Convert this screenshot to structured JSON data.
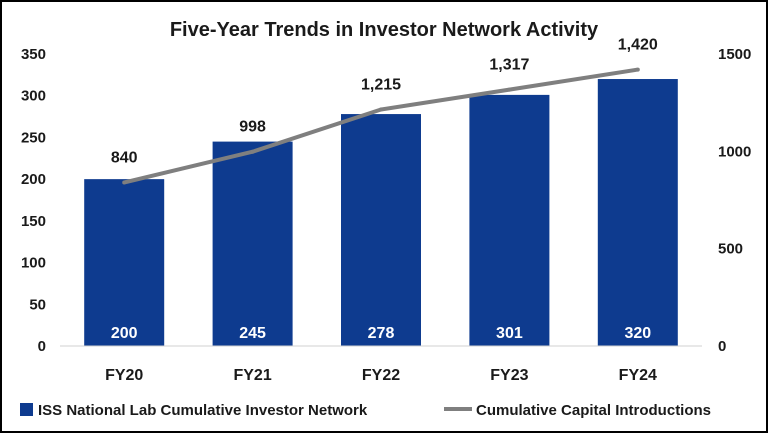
{
  "chart_data": {
    "type": "bar+line",
    "title": "Five-Year Trends in Investor Network Activity",
    "categories": [
      "FY20",
      "FY21",
      "FY22",
      "FY23",
      "FY24"
    ],
    "series": [
      {
        "name": "ISS National Lab Cumulative Investor Network",
        "type": "bar",
        "axis": "left",
        "values": [
          200,
          245,
          278,
          301,
          320
        ],
        "labels": [
          "200",
          "245",
          "278",
          "301",
          "320"
        ],
        "color": "#0E3B8F"
      },
      {
        "name": "Cumulative Capital Introductions",
        "type": "line",
        "axis": "right",
        "values": [
          840,
          998,
          1215,
          1317,
          1420
        ],
        "labels": [
          "840",
          "998",
          "1,215",
          "1,317",
          "1,420"
        ],
        "color": "#7F7F7F"
      }
    ],
    "y_left": {
      "min": 0,
      "max": 350,
      "ticks": [
        0,
        50,
        100,
        150,
        200,
        250,
        300,
        350
      ]
    },
    "y_right": {
      "min": 0,
      "max": 1500,
      "ticks": [
        0,
        500,
        1000,
        1500
      ]
    },
    "grid": false,
    "legend": "bottom"
  }
}
